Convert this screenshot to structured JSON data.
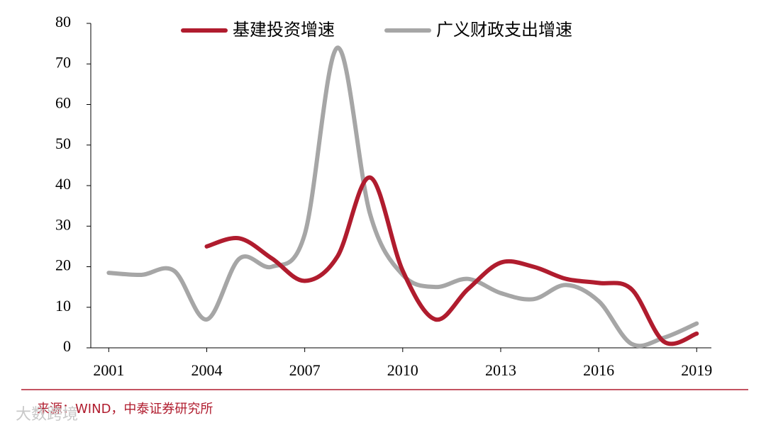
{
  "chart_data": {
    "type": "line",
    "xlim": [
      2000.45,
      2019.45
    ],
    "xticks": [
      2001,
      2004,
      2007,
      2010,
      2013,
      2016,
      2019
    ],
    "ylim": [
      0,
      80
    ],
    "yticks": [
      0,
      10,
      20,
      30,
      40,
      50,
      60,
      70,
      80
    ],
    "legend": "top",
    "series": [
      {
        "name": "基建投资增速",
        "color": "#b01c2e",
        "x": [
          2004,
          2005,
          2006,
          2007,
          2008,
          2009,
          2010,
          2011,
          2012,
          2013,
          2014,
          2015,
          2016,
          2017,
          2018,
          2019
        ],
        "values": [
          25,
          27,
          22,
          16.5,
          22.5,
          42,
          19,
          7,
          14.5,
          21,
          20,
          17,
          16,
          14.5,
          1.5,
          3.5
        ]
      },
      {
        "name": "广义财政支出增速",
        "color": "#a6a6a6",
        "x": [
          2001,
          2002,
          2003,
          2004,
          2005,
          2006,
          2007,
          2008,
          2009,
          2010,
          2011,
          2012,
          2013,
          2014,
          2015,
          2016,
          2017,
          2018,
          2019
        ],
        "values": [
          18.5,
          18,
          19,
          7,
          22,
          20,
          28,
          74,
          33,
          18,
          15,
          17,
          13.5,
          12,
          15.5,
          11.5,
          1,
          2.5,
          6
        ]
      }
    ],
    "source": "来源：WIND，中泰证券研究所",
    "watermark": "大数跨境"
  }
}
